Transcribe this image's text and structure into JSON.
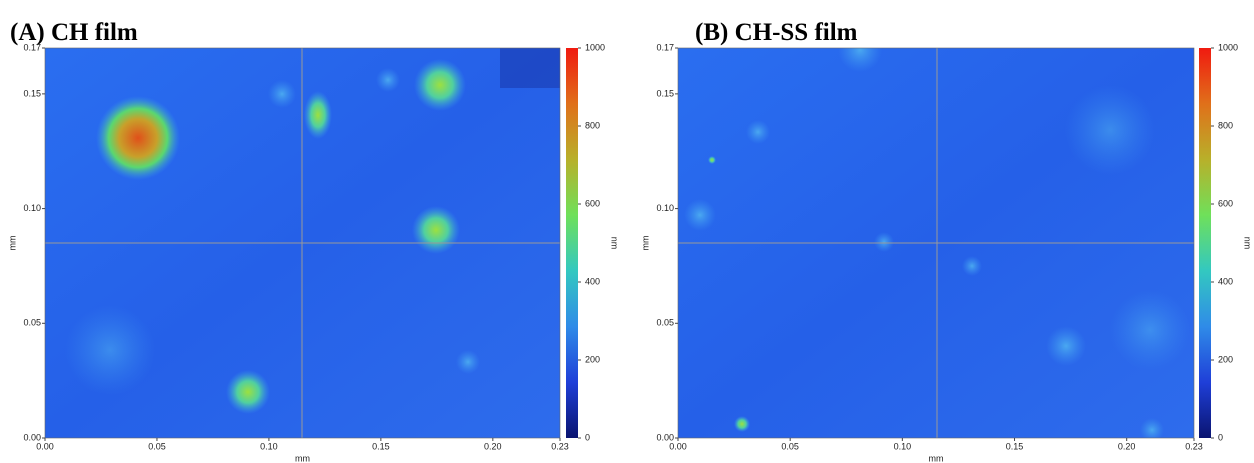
{
  "chart_data": [
    {
      "type": "heatmap",
      "title": "(A) CH film",
      "xlabel": "mm",
      "ylabel": "mm",
      "xlim": [
        0,
        0.23
      ],
      "xticks": [
        {
          "value": 0,
          "label": "0.00"
        },
        0.05,
        {
          "value": 0.1,
          "label": "0.10"
        },
        0.15,
        {
          "value": 0.2,
          "label": "0.20"
        },
        0.23
      ],
      "ylim": [
        0,
        0.17
      ],
      "yticks": [
        {
          "value": 0,
          "label": "0.00"
        },
        0.05,
        {
          "value": 0.1,
          "label": "0.10"
        },
        0.15,
        0.17
      ],
      "colorbar": {
        "label": "nm",
        "lim": [
          0,
          1000
        ],
        "ticks": [
          0,
          200,
          400,
          600,
          800,
          1000
        ],
        "colors": [
          "#0a1470",
          "#1f3fd8",
          "#2f8be8",
          "#33c8c0",
          "#6fe05a",
          "#b8b02a",
          "#e0701a",
          "#f01a10"
        ]
      }
    },
    {
      "type": "heatmap",
      "title": "(B) CH-SS   film",
      "xlabel": "mm",
      "ylabel": "mm",
      "xlim": [
        0,
        0.23
      ],
      "xticks": [
        {
          "value": 0,
          "label": "0.00"
        },
        0.05,
        {
          "value": 0.1,
          "label": "0.10"
        },
        0.15,
        {
          "value": 0.2,
          "label": "0.20"
        },
        0.23
      ],
      "ylim": [
        0,
        0.17
      ],
      "yticks": [
        {
          "value": 0,
          "label": "0.00"
        },
        0.05,
        {
          "value": 0.1,
          "label": "0.10"
        },
        0.15,
        0.17
      ],
      "colorbar": {
        "label": "nm",
        "lim": [
          0,
          1000
        ],
        "ticks": [
          0,
          200,
          400,
          600,
          800,
          1000
        ],
        "colors": [
          "#0a1470",
          "#1f3fd8",
          "#2f8be8",
          "#33c8c0",
          "#6fe05a",
          "#b8b02a",
          "#e0701a",
          "#f01a10"
        ]
      }
    }
  ]
}
